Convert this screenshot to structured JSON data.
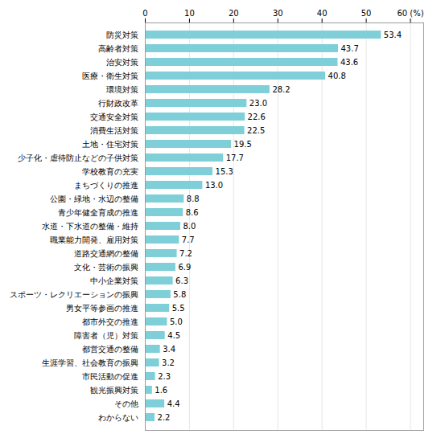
{
  "chart_data": {
    "type": "bar",
    "orientation": "horizontal",
    "categories": [
      "防災対策",
      "高齢者対策",
      "治安対策",
      "医療・衛生対策",
      "環境対策",
      "行財政改革",
      "交通安全対策",
      "消費生活対策",
      "土地・住宅対策",
      "少子化・虐待防止などの子供対策",
      "学校教育の充実",
      "まちづくりの推進",
      "公園・緑地・水辺の整備",
      "青少年健全育成の推進",
      "水道・下水道の整備・維持",
      "職業能力開発、雇用対策",
      "道路交通網の整備",
      "文化・芸術の振興",
      "中小企業対策",
      "スポーツ・レクリエーションの振興",
      "男女平等参画の推進",
      "都市外交の推進",
      "障害者（児）対策",
      "都営交通の整備",
      "生涯学習、社会教育の振興",
      "市民活動の促進",
      "観光振興対策",
      "その他",
      "わからない"
    ],
    "values": [
      53.4,
      43.7,
      43.6,
      40.8,
      28.2,
      23.0,
      22.6,
      22.5,
      19.5,
      17.7,
      15.3,
      13.0,
      8.8,
      8.6,
      8.0,
      7.7,
      7.2,
      6.9,
      6.3,
      5.8,
      5.5,
      5.0,
      4.5,
      3.4,
      3.2,
      2.3,
      1.6,
      4.4,
      2.2
    ],
    "value_labels": [
      "53.4",
      "43.7",
      "43.6",
      "40.8",
      "28.2",
      "23.0",
      "22.6",
      "22.5",
      "19.5",
      "17.7",
      "15.3",
      "13.0",
      "8.8",
      "8.6",
      "8.0",
      "7.7",
      "7.2",
      "6.9",
      "6.3",
      "5.8",
      "5.5",
      "5.0",
      "4.5",
      "3.4",
      "3.2",
      "2.3",
      "1.6",
      "4.4",
      "2.2"
    ],
    "color": "#7ECFD8",
    "xlim": [
      0,
      63
    ],
    "xticks": [
      0,
      10,
      20,
      30,
      40,
      50,
      {
        "value": 60,
        "label": "60 (%)"
      }
    ],
    "grid": true,
    "data_labels": true
  }
}
